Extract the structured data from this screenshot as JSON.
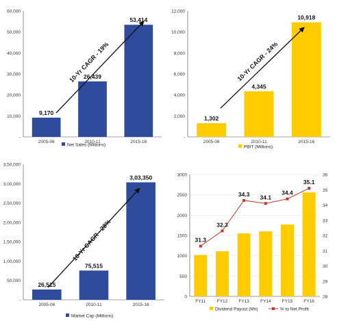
{
  "chart_data": [
    {
      "type": "bar",
      "categories": [
        "2005-06",
        "2010-11",
        "2015-16"
      ],
      "series": [
        {
          "name": "Net Sales (Millions)",
          "values": [
            9170,
            26439,
            53414
          ],
          "labels": [
            "9,170",
            "26,439",
            "53,414"
          ]
        }
      ],
      "ylim": [
        0,
        60000
      ],
      "yticks": [
        0,
        10000,
        20000,
        30000,
        40000,
        50000,
        60000
      ],
      "yticklabels": [
        "-",
        "10,000",
        "20,000",
        "30,000",
        "40,000",
        "50,000",
        "60,000"
      ],
      "annotation": "10-Yr CAGR - 19%",
      "legend": "bottom",
      "grid": false,
      "color": "#2e4c9b"
    },
    {
      "type": "bar",
      "categories": [
        "2005-06",
        "2010-11",
        "2015-16"
      ],
      "series": [
        {
          "name": "PBIT (Millions)",
          "values": [
            1302,
            4345,
            10918
          ],
          "labels": [
            "1,302",
            "4,345",
            "10,918"
          ]
        }
      ],
      "ylim": [
        0,
        12000
      ],
      "yticks": [
        0,
        2000,
        4000,
        6000,
        8000,
        10000,
        12000
      ],
      "yticklabels": [
        "-",
        "2,000",
        "4,000",
        "6,000",
        "8,000",
        "10,000",
        "12,000"
      ],
      "annotation": "10-Yr CAGR - 24%",
      "legend": "bottom",
      "grid": false,
      "color": "#ffcc00"
    },
    {
      "type": "bar",
      "categories": [
        "2005-06",
        "2010-11",
        "2015-16"
      ],
      "series": [
        {
          "name": "Market Cap (Millions)",
          "values": [
            26515,
            75515,
            303350
          ],
          "labels": [
            "26,515",
            "75,515",
            "3,03,350"
          ]
        }
      ],
      "ylim": [
        0,
        350000
      ],
      "yticks": [
        0,
        50000,
        100000,
        150000,
        200000,
        250000,
        300000,
        350000
      ],
      "yticklabels": [
        "-",
        "50,000",
        "1,00,000",
        "1,50,000",
        "2,00,000",
        "2,50,000",
        "3,00,000",
        "3,50,000"
      ],
      "annotation": "10-Yr CAGR - 28%",
      "legend": "bottom",
      "grid": false,
      "color": "#2e4c9b"
    },
    {
      "type": "bar",
      "categories": [
        "FY11",
        "FY12",
        "FY13",
        "FY14",
        "FY15",
        "FY16"
      ],
      "series": [
        {
          "name": "Dividend Payout (Mn)",
          "values": [
            1020,
            1110,
            1550,
            1600,
            1770,
            2560
          ],
          "axis": "left"
        },
        {
          "name": "% to Net Profit",
          "type": "line",
          "values": [
            31.3,
            32.3,
            34.3,
            34.1,
            34.4,
            35.1
          ],
          "labels": [
            "31.3",
            "32.3",
            "34.3",
            "34.1",
            "34.4",
            "35.1"
          ],
          "axis": "right"
        }
      ],
      "ylim": [
        0,
        3000
      ],
      "yticks": [
        0,
        500,
        1000,
        1500,
        2000,
        2500,
        3000
      ],
      "yticklabels": [
        "0",
        "500",
        "1000",
        "1500",
        "2000",
        "2500",
        "3000"
      ],
      "y2lim": [
        28,
        36
      ],
      "y2ticks": [
        28,
        29,
        30,
        31,
        32,
        33,
        34,
        35,
        36
      ],
      "y2ticklabels": [
        "28",
        "29",
        "30",
        "31",
        "32",
        "33",
        "34",
        "35",
        "36"
      ],
      "legend": "bottom",
      "grid": true,
      "color": "#ffcc00",
      "line_color": "#c0392b"
    }
  ]
}
